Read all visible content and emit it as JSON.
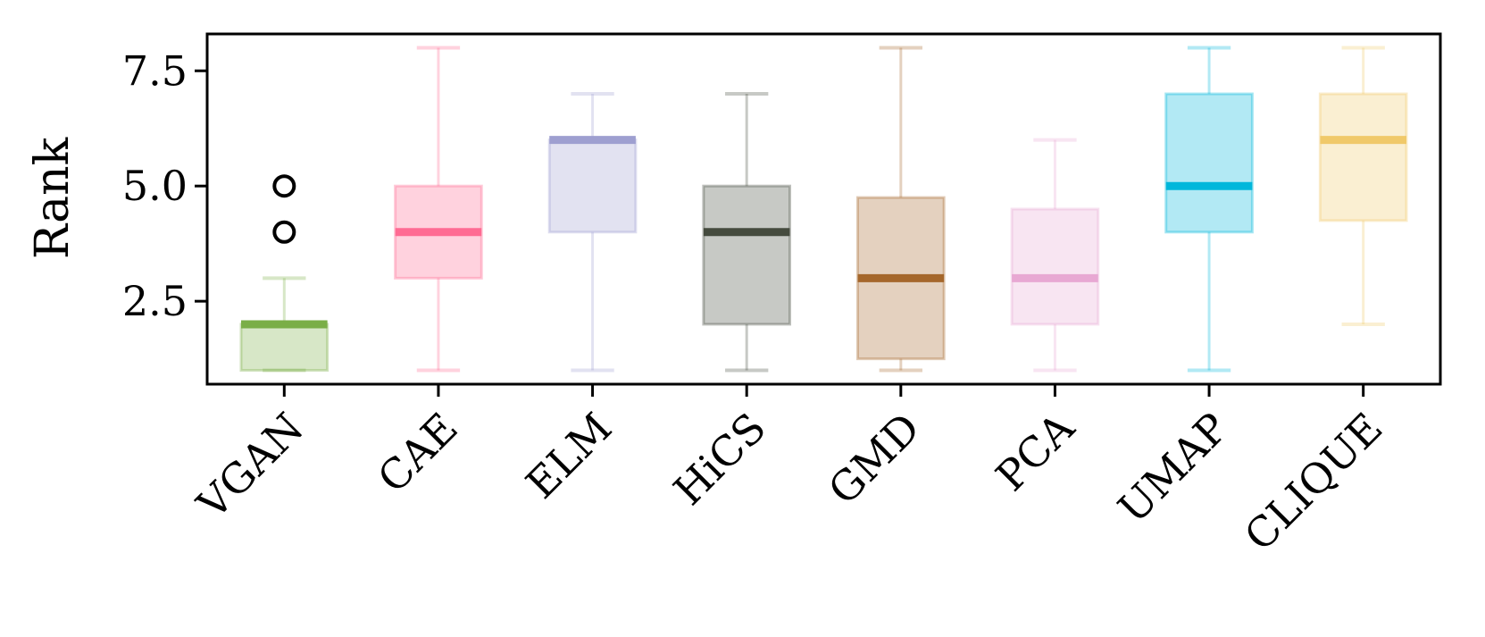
{
  "chart_data": {
    "type": "box",
    "title": "",
    "xlabel": "",
    "ylabel": "Rank",
    "ylim": [
      0.7,
      8.3
    ],
    "yticks": [
      2.5,
      5.0,
      7.5
    ],
    "ytick_labels": [
      "2.5",
      "5.0",
      "7.5"
    ],
    "grid": false,
    "categories": [
      "VGAN",
      "CAE",
      "ELM",
      "HiCS",
      "GMD",
      "PCA",
      "UMAP",
      "CLIQUE"
    ],
    "boxes": [
      {
        "name": "VGAN",
        "whislo": 1,
        "q1": 1,
        "med": 2,
        "q3": 2,
        "whishi": 3,
        "fliers": [
          4,
          5
        ],
        "color": "#7aae47"
      },
      {
        "name": "CAE",
        "whislo": 1,
        "q1": 3,
        "med": 4,
        "q3": 5,
        "whishi": 8,
        "fliers": [],
        "color": "#ff6b93"
      },
      {
        "name": "ELM",
        "whislo": 1,
        "q1": 4,
        "med": 6,
        "q3": 6,
        "whishi": 7,
        "fliers": [],
        "color": "#9e9fd0"
      },
      {
        "name": "HiCS",
        "whislo": 1,
        "q1": 2,
        "med": 4,
        "q3": 5,
        "whishi": 7,
        "fliers": [],
        "color": "#454b3e"
      },
      {
        "name": "GMD",
        "whislo": 1,
        "q1": 1.25,
        "med": 3,
        "q3": 4.75,
        "whishi": 8,
        "fliers": [],
        "color": "#a5672b"
      },
      {
        "name": "PCA",
        "whislo": 1,
        "q1": 2,
        "med": 3,
        "q3": 4.5,
        "whishi": 6,
        "fliers": [],
        "color": "#e8a8d3"
      },
      {
        "name": "UMAP",
        "whislo": 1,
        "q1": 4,
        "med": 5,
        "q3": 7,
        "whishi": 8,
        "fliers": [],
        "color": "#00b7db"
      },
      {
        "name": "CLIQUE",
        "whislo": 2,
        "q1": 4.25,
        "med": 6,
        "q3": 7,
        "whishi": 8,
        "fliers": [],
        "color": "#f0c96a"
      }
    ]
  }
}
